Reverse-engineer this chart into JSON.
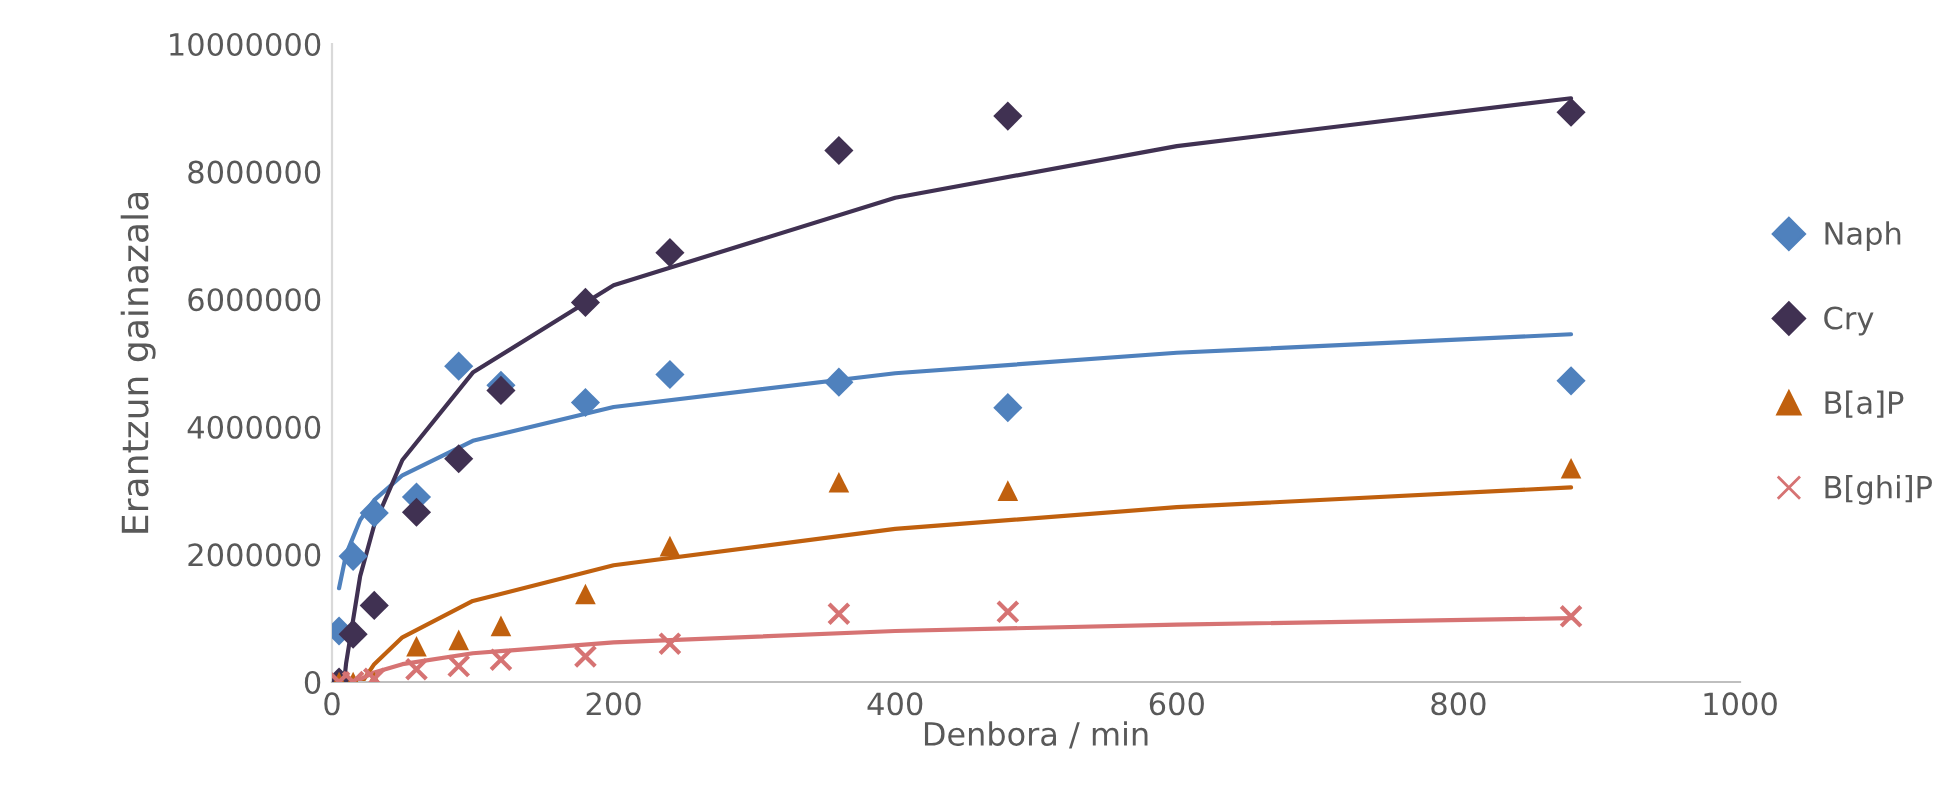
{
  "chart_data": {
    "type": "scatter",
    "xlabel": "Denbora / min",
    "ylabel": "Erantzun gainazala",
    "xlim": [
      0,
      1000
    ],
    "ylim": [
      0,
      10000000
    ],
    "xticks": [
      0,
      200,
      400,
      600,
      800,
      1000
    ],
    "yticks": [
      0,
      2000000,
      4000000,
      6000000,
      8000000,
      10000000
    ],
    "grid": false,
    "legend": "right",
    "series": [
      {
        "name": "Naph",
        "color": "#4f81bd",
        "marker": "diamond",
        "x": [
          5,
          15,
          30,
          60,
          90,
          120,
          180,
          240,
          360,
          480,
          880
        ],
        "values": [
          800000,
          1970000,
          2650000,
          2900000,
          4950000,
          4650000,
          4380000,
          4820000,
          4700000,
          4300000,
          4720000
        ]
      },
      {
        "name": "Cry",
        "color": "#403152",
        "marker": "diamond",
        "x": [
          5,
          15,
          30,
          60,
          90,
          120,
          180,
          240,
          360,
          480,
          880
        ],
        "values": [
          0,
          750000,
          1200000,
          2660000,
          3500000,
          4570000,
          5950000,
          6730000,
          8330000,
          8870000,
          8930000
        ]
      },
      {
        "name": "B[a]P",
        "color": "#c0600e",
        "marker": "triangle",
        "x": [
          5,
          15,
          30,
          60,
          90,
          120,
          180,
          240,
          360,
          480,
          880
        ],
        "values": [
          0,
          0,
          0,
          560000,
          660000,
          880000,
          1380000,
          2130000,
          3130000,
          3000000,
          3350000
        ]
      },
      {
        "name": "B[ghi]P",
        "color": "#d67373",
        "marker": "cross",
        "x": [
          5,
          15,
          30,
          60,
          90,
          120,
          180,
          240,
          360,
          480,
          880
        ],
        "values": [
          0,
          0,
          50000,
          200000,
          250000,
          350000,
          400000,
          600000,
          1070000,
          1100000,
          1030000
        ]
      },
      {
        "type": "line",
        "color": "#4f81bd",
        "marker": "none",
        "x": [
          5,
          10,
          20,
          30,
          50,
          100,
          200,
          400,
          600,
          880
        ],
        "values": [
          1470000,
          2000000,
          2540000,
          2850000,
          3240000,
          3780000,
          4310000,
          4840000,
          5160000,
          5450000
        ]
      },
      {
        "type": "line",
        "color": "#403152",
        "marker": "none",
        "x": [
          9,
          10,
          20,
          30,
          50,
          100,
          200,
          400,
          600,
          880
        ],
        "values": [
          80000,
          290000,
          1660000,
          2460000,
          3480000,
          4850000,
          6220000,
          7590000,
          8400000,
          9150000
        ]
      },
      {
        "type": "line",
        "color": "#c0600e",
        "marker": "none",
        "x": [
          22,
          30,
          50,
          100,
          200,
          400,
          600,
          880
        ],
        "values": [
          20000,
          280000,
          700000,
          1270000,
          1830000,
          2400000,
          2740000,
          3050000
        ]
      },
      {
        "type": "line",
        "color": "#d67373",
        "marker": "none",
        "x": [
          17,
          30,
          50,
          100,
          200,
          400,
          600,
          880
        ],
        "values": [
          10000,
          150000,
          280000,
          450000,
          620000,
          800000,
          900000,
          1000000
        ]
      }
    ]
  }
}
